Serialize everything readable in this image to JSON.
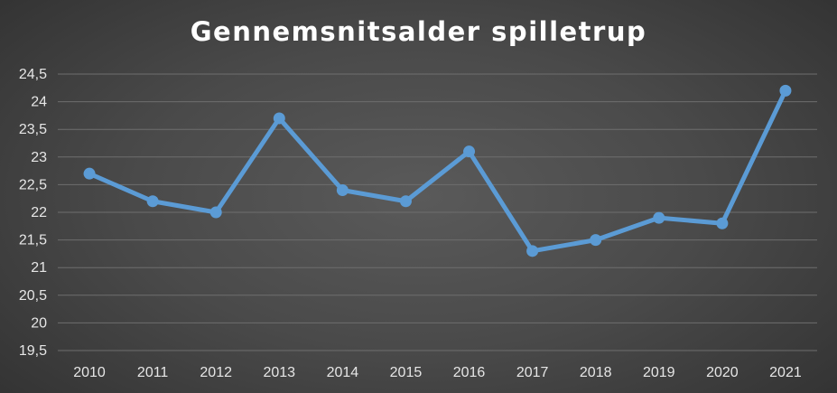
{
  "chart_data": {
    "type": "line",
    "title": "Gennemsnitsalder spilletrup",
    "xlabel": "",
    "ylabel": "",
    "categories": [
      "2010",
      "2011",
      "2012",
      "2013",
      "2014",
      "2015",
      "2016",
      "2017",
      "2018",
      "2019",
      "2020",
      "2021"
    ],
    "series": [
      {
        "values": [
          22.7,
          22.2,
          22.0,
          23.7,
          22.4,
          22.2,
          23.1,
          21.3,
          21.5,
          21.9,
          21.8,
          24.2
        ]
      }
    ],
    "ylim": [
      19.5,
      24.5
    ],
    "yticks": [
      "19,5",
      "20",
      "20,5",
      "21",
      "21,5",
      "22",
      "22,5",
      "23",
      "23,5",
      "24",
      "24,5"
    ],
    "grid": true,
    "legend": "none",
    "colors": {
      "line": "#5b9bd5",
      "grid": "#6e6e6e",
      "text": "#e6e6e6",
      "title": "#ffffff"
    }
  }
}
